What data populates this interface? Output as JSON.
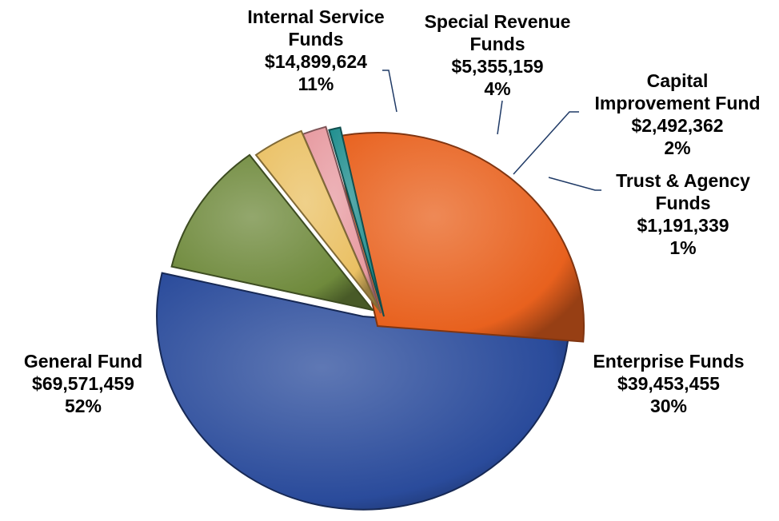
{
  "chart_data": {
    "type": "pie",
    "title": "",
    "slices": [
      {
        "name": "General Fund",
        "value": 69571459,
        "amount_label": "$69,571,459",
        "percent_label": "52%",
        "color": "#2a4b9b"
      },
      {
        "name": "Enterprise Funds",
        "value": 39453455,
        "amount_label": "$39,453,455",
        "percent_label": "30%",
        "color": "#e8611e"
      },
      {
        "name": "Trust & Agency Funds",
        "value": 1191339,
        "amount_label": "$1,191,339",
        "percent_label": "1%",
        "color": "#1f8e8e"
      },
      {
        "name": "Capital Improvement Fund",
        "value": 2492362,
        "amount_label": "$2,492,362",
        "percent_label": "2%",
        "color": "#e79aa0"
      },
      {
        "name": "Special Revenue Funds",
        "value": 5355159,
        "amount_label": "$5,355,159",
        "percent_label": "4%",
        "color": "#eac063"
      },
      {
        "name": "Internal Service Funds",
        "value": 14899624,
        "amount_label": "$14,899,624",
        "percent_label": "11%",
        "color": "#6f8a3c"
      }
    ],
    "labels": {
      "general": {
        "line1": "General Fund",
        "amount": "$69,571,459",
        "percent": "52%"
      },
      "enterprise": {
        "line1": "Enterprise Funds",
        "amount": "$39,453,455",
        "percent": "30%"
      },
      "trust": {
        "line1": "Trust & Agency",
        "line2": "Funds",
        "amount": "$1,191,339",
        "percent": "1%"
      },
      "capital": {
        "line1": "Capital",
        "line2": "Improvement Fund",
        "amount": "$2,492,362",
        "percent": "2%"
      },
      "special": {
        "line1": "Special Revenue",
        "line2": "Funds",
        "amount": "$5,355,159",
        "percent": "4%"
      },
      "internal": {
        "line1": "Internal Service",
        "line2": "Funds",
        "amount": "$14,899,624",
        "percent": "11%"
      }
    }
  }
}
